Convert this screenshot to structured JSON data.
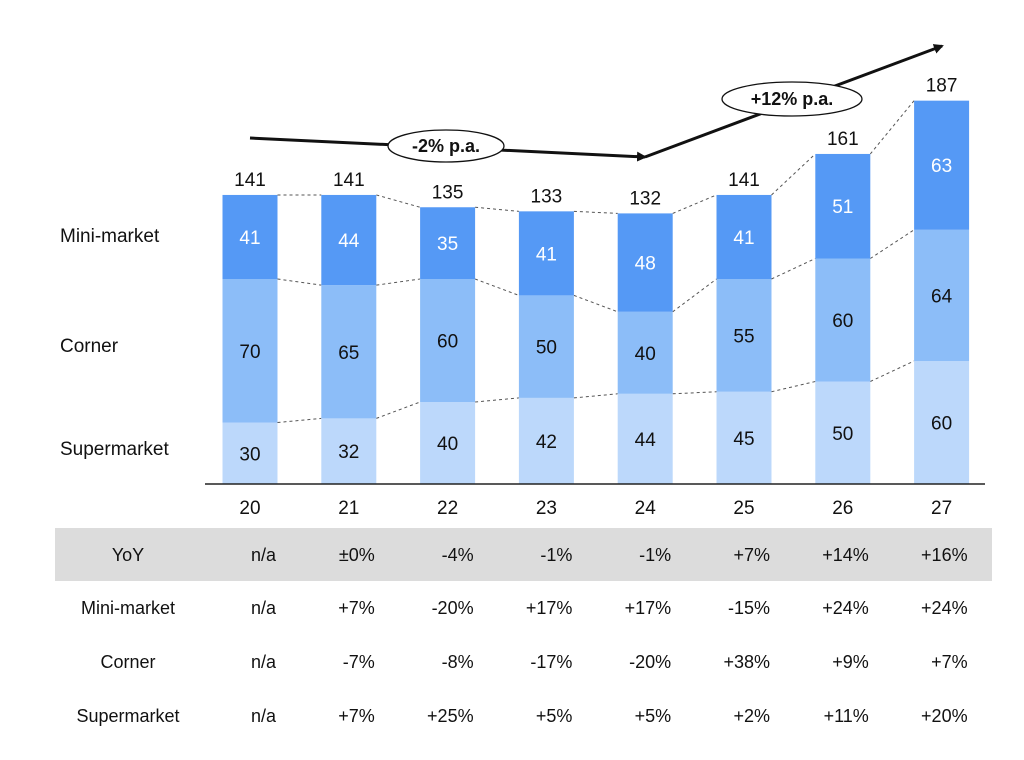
{
  "chart_data": {
    "type": "bar",
    "stacked": true,
    "categories": [
      "20",
      "21",
      "22",
      "23",
      "24",
      "25",
      "26",
      "27"
    ],
    "series": [
      {
        "name": "Supermarket",
        "color": "#bcd8fb",
        "values": [
          30,
          32,
          40,
          42,
          44,
          45,
          50,
          60
        ]
      },
      {
        "name": "Corner",
        "color": "#8cbdf8",
        "values": [
          70,
          65,
          60,
          50,
          40,
          55,
          60,
          64
        ]
      },
      {
        "name": "Mini-market",
        "color": "#5599f5",
        "values": [
          41,
          44,
          35,
          41,
          48,
          41,
          51,
          63
        ]
      }
    ],
    "totals": [
      141,
      141,
      135,
      133,
      132,
      141,
      161,
      187
    ],
    "row_labels": [
      "Mini-market",
      "Corner",
      "Supermarket"
    ],
    "callouts": [
      {
        "text": "-2% p.a.",
        "from_category": "20",
        "to_category": "24"
      },
      {
        "text": "+12% p.a.",
        "from_category": "24",
        "to_category": "27"
      }
    ],
    "growth_table": [
      {
        "label": "YoY",
        "values": [
          "n/a",
          "±0%",
          "-4%",
          "-1%",
          "-1%",
          "+7%",
          "+14%",
          "+16%"
        ]
      },
      {
        "label": "Mini-market",
        "values": [
          "n/a",
          "+7%",
          "-20%",
          "+17%",
          "+17%",
          "-15%",
          "+24%",
          "+24%"
        ]
      },
      {
        "label": "Corner",
        "values": [
          "n/a",
          "-7%",
          "-8%",
          "-17%",
          "-20%",
          "+38%",
          "+9%",
          "+7%"
        ]
      },
      {
        "label": "Supermarket",
        "values": [
          "n/a",
          "+7%",
          "+25%",
          "+5%",
          "+5%",
          "+2%",
          "+11%",
          "+20%"
        ]
      }
    ],
    "table_highlight_color": "#dcdcdc",
    "ylim": [
      0,
      187
    ]
  }
}
